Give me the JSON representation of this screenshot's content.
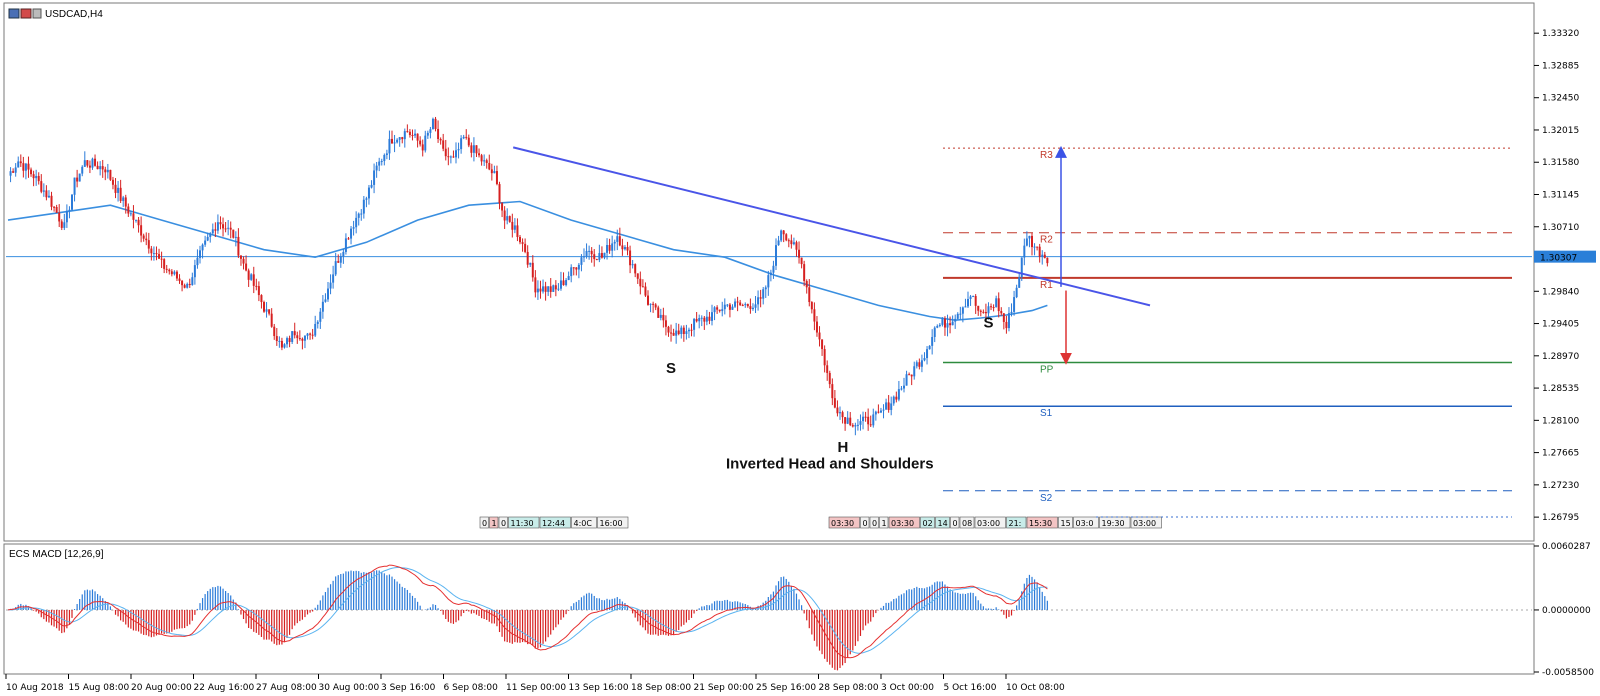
{
  "window": {
    "title": "USDCAD,H4",
    "icon": "chart-window-icon"
  },
  "indicator": {
    "title": "ECS MACD [12,26,9]"
  },
  "colors": {
    "bull": "#2b7bd9",
    "bear": "#d62020",
    "ma": "#3a8fe0",
    "trend": "#4a55e8",
    "r": "#c0392b",
    "pp": "#2e8b3e",
    "s": "#1f5fbf",
    "macd": "#e53030",
    "signal": "#5bb4f0"
  },
  "chart_data": {
    "type": "candlestick",
    "symbol": "USDCAD",
    "timeframe": "H4",
    "title": "USDCAD,H4",
    "ylim": [
      1.265,
      1.337
    ],
    "y_ticks": [
      "1.33320",
      "1.32885",
      "1.32450",
      "1.32015",
      "1.31580",
      "1.31145",
      "1.30710",
      "1.30275",
      "1.29840",
      "1.29405",
      "1.28970",
      "1.28535",
      "1.28100",
      "1.27665",
      "1.27230",
      "1.26795"
    ],
    "current_price": "1.30307",
    "x_ticks": [
      "10 Aug 2018",
      "15 Aug 08:00",
      "20 Aug 00:00",
      "22 Aug 16:00",
      "27 Aug 08:00",
      "30 Aug 00:00",
      "3 Sep 16:00",
      "6 Sep 08:00",
      "11 Sep 00:00",
      "13 Sep 16:00",
      "18 Sep 08:00",
      "21 Sep 00:00",
      "25 Sep 16:00",
      "28 Sep 08:00",
      "3 Oct 00:00",
      "5 Oct 16:00",
      "10 Oct 08:00"
    ],
    "price_path": [
      [
        0,
        1.314
      ],
      [
        4,
        1.316
      ],
      [
        10,
        1.314
      ],
      [
        16,
        1.311
      ],
      [
        22,
        1.307
      ],
      [
        26,
        1.313
      ],
      [
        30,
        1.3158
      ],
      [
        38,
        1.315
      ],
      [
        44,
        1.311
      ],
      [
        52,
        1.3065
      ],
      [
        60,
        1.302
      ],
      [
        70,
        1.299
      ],
      [
        76,
        1.304
      ],
      [
        82,
        1.308
      ],
      [
        88,
        1.306
      ],
      [
        92,
        1.302
      ],
      [
        97,
        1.2985
      ],
      [
        103,
        1.294
      ],
      [
        107,
        1.2905
      ],
      [
        112,
        1.293
      ],
      [
        118,
        1.292
      ],
      [
        122,
        1.296
      ],
      [
        128,
        1.302
      ],
      [
        134,
        1.307
      ],
      [
        140,
        1.311
      ],
      [
        144,
        1.315
      ],
      [
        150,
        1.319
      ],
      [
        156,
        1.32
      ],
      [
        162,
        1.318
      ],
      [
        166,
        1.321
      ],
      [
        170,
        1.317
      ],
      [
        174,
        1.316
      ],
      [
        178,
        1.319
      ],
      [
        184,
        1.3165
      ],
      [
        190,
        1.314
      ],
      [
        194,
        1.308
      ],
      [
        198,
        1.307
      ],
      [
        202,
        1.304
      ],
      [
        206,
        1.299
      ],
      [
        214,
        1.2985
      ],
      [
        220,
        1.301
      ],
      [
        226,
        1.304
      ],
      [
        232,
        1.303
      ],
      [
        238,
        1.306
      ],
      [
        244,
        1.302
      ],
      [
        250,
        1.297
      ],
      [
        256,
        1.294
      ],
      [
        262,
        1.2925
      ],
      [
        268,
        1.294
      ],
      [
        274,
        1.295
      ],
      [
        280,
        1.2965
      ],
      [
        288,
        1.2965
      ],
      [
        294,
        1.297
      ],
      [
        298,
        1.301
      ],
      [
        302,
        1.307
      ],
      [
        306,
        1.305
      ],
      [
        310,
        1.302
      ],
      [
        314,
        1.296
      ],
      [
        318,
        1.2905
      ],
      [
        322,
        1.284
      ],
      [
        326,
        1.2815
      ],
      [
        332,
        1.2805
      ],
      [
        340,
        1.2815
      ],
      [
        346,
        1.284
      ],
      [
        352,
        1.287
      ],
      [
        358,
        1.29
      ],
      [
        362,
        1.2935
      ],
      [
        368,
        1.2945
      ],
      [
        372,
        1.296
      ],
      [
        376,
        1.298
      ],
      [
        380,
        1.295
      ],
      [
        386,
        1.297
      ],
      [
        390,
        1.2935
      ],
      [
        394,
        1.299
      ],
      [
        398,
        1.306
      ],
      [
        402,
        1.304
      ],
      [
        406,
        1.303
      ]
    ],
    "moving_average": [
      [
        0,
        1.308
      ],
      [
        20,
        1.309
      ],
      [
        40,
        1.31
      ],
      [
        60,
        1.308
      ],
      [
        80,
        1.306
      ],
      [
        100,
        1.304
      ],
      [
        120,
        1.303
      ],
      [
        140,
        1.305
      ],
      [
        160,
        1.308
      ],
      [
        180,
        1.31
      ],
      [
        200,
        1.3105
      ],
      [
        220,
        1.308
      ],
      [
        240,
        1.306
      ],
      [
        260,
        1.304
      ],
      [
        280,
        1.303
      ],
      [
        300,
        1.3005
      ],
      [
        320,
        1.2985
      ],
      [
        340,
        1.2965
      ],
      [
        360,
        1.295
      ],
      [
        370,
        1.2945
      ],
      [
        380,
        1.2948
      ],
      [
        390,
        1.2952
      ],
      [
        400,
        1.2958
      ],
      [
        406,
        1.2965
      ]
    ],
    "trendline": {
      "from": [
        195,
        1.3178
      ],
      "to": [
        440,
        1.2965
      ]
    },
    "pivot_levels": [
      {
        "name": "R3",
        "price": 1.3177,
        "style": "dotted"
      },
      {
        "name": "R2",
        "price": 1.3063,
        "style": "dashed"
      },
      {
        "name": "R1",
        "price": 1.3002,
        "style": "solid"
      },
      {
        "name": "PP",
        "price": 1.2888,
        "style": "solid"
      },
      {
        "name": "S1",
        "price": 1.2829,
        "style": "solid"
      },
      {
        "name": "S2",
        "price": 1.2715,
        "style": "dashed"
      }
    ],
    "annotations": [
      {
        "text": "S",
        "at": [
          259,
          1.2874
        ]
      },
      {
        "text": "H",
        "at": [
          326,
          1.2767
        ]
      },
      {
        "text": "S",
        "at": [
          383,
          1.2935
        ]
      },
      {
        "text": "Inverted Head and Shoulders",
        "at": [
          321,
          1.2745
        ]
      }
    ],
    "session_boxes_left": [
      "0",
      "1",
      "0",
      "11:30",
      "12:44",
      "4:0C",
      "16:00"
    ],
    "session_boxes_right": [
      "03:30",
      "0",
      "0",
      "1",
      "03:30",
      "02",
      "14",
      "0",
      "08",
      "03:00",
      "21:",
      "15:30",
      "15",
      "03:0",
      "19:30",
      "03:00"
    ],
    "macd": {
      "name": "ECS MACD [12,26,9]",
      "ylim": [
        -0.00585,
        0.0060287
      ],
      "y_ticks": [
        "0.0060287",
        "0.0000000",
        "-0.0058500"
      ]
    }
  }
}
